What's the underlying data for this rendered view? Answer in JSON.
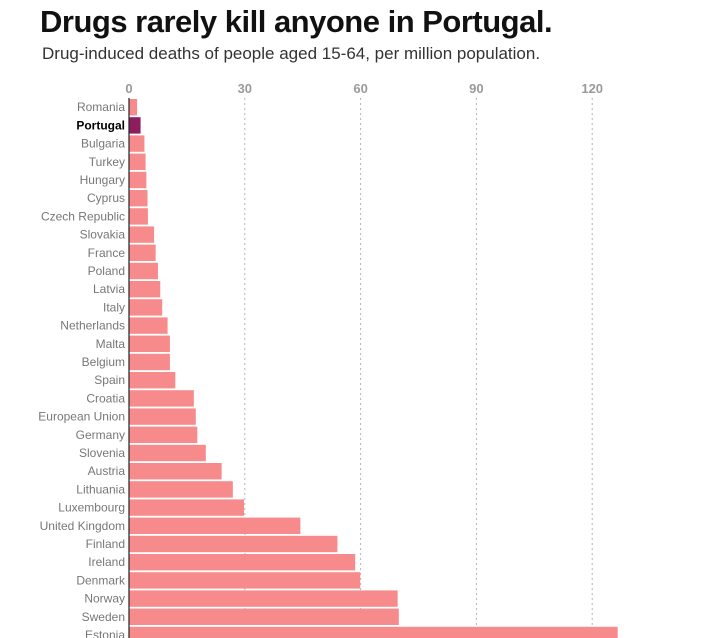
{
  "chart_data": {
    "type": "bar",
    "orientation": "horizontal",
    "title": "Drugs rarely kill anyone in Portugal.",
    "subtitle": "Drug-induced deaths of people aged 15-64, per million population.",
    "xlim": [
      0,
      130
    ],
    "xticks": [
      0,
      30,
      60,
      90,
      120
    ],
    "grid": true,
    "highlight": "Portugal",
    "colors": {
      "bar": "#f78b8b",
      "highlight": "#8e1d5e",
      "grid": "#b5b5b5",
      "axis": "#222222"
    },
    "categories": [
      "Romania",
      "Portugal",
      "Bulgaria",
      "Turkey",
      "Hungary",
      "Cyprus",
      "Czech Republic",
      "Slovakia",
      "France",
      "Poland",
      "Latvia",
      "Italy",
      "Netherlands",
      "Malta",
      "Belgium",
      "Spain",
      "Croatia",
      "European Union",
      "Germany",
      "Slovenia",
      "Austria",
      "Lithuania",
      "Luxembourg",
      "United Kingdom",
      "Finland",
      "Ireland",
      "Denmark",
      "Norway",
      "Sweden",
      "Estonia"
    ],
    "values": [
      2.1,
      3.0,
      4.0,
      4.3,
      4.5,
      4.8,
      4.9,
      6.5,
      6.9,
      7.5,
      8.1,
      8.6,
      10.0,
      10.6,
      10.6,
      12.0,
      16.8,
      17.3,
      17.7,
      19.9,
      24.0,
      26.9,
      29.8,
      44.4,
      54.0,
      58.6,
      59.9,
      69.6,
      69.9,
      126.6
    ]
  }
}
